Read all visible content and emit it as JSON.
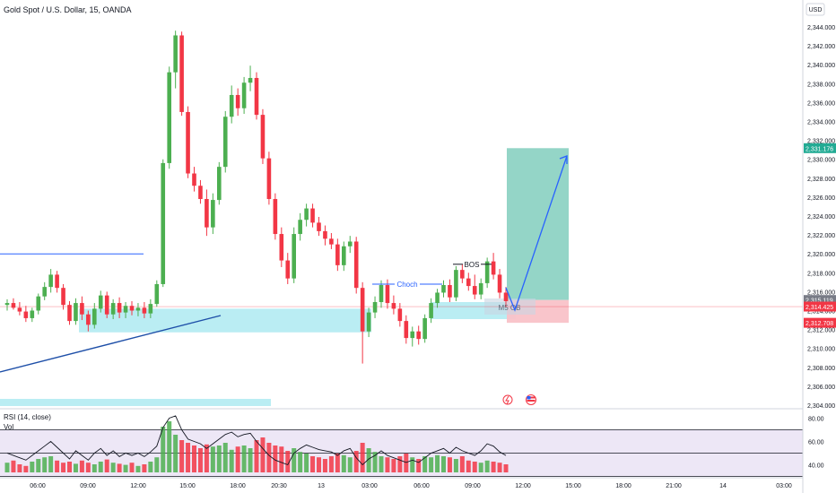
{
  "header": {
    "symbol_title": "Gold Spot / U.S. Dollar, 15, OANDA",
    "currency": "USD"
  },
  "price_axis": {
    "ticks": [
      "2,344.000",
      "2,342.000",
      "2,340.000",
      "2,338.000",
      "2,336.000",
      "2,334.000",
      "2,332.000",
      "2,330.000",
      "2,328.000",
      "2,326.000",
      "2,324.000",
      "2,322.000",
      "2,320.000",
      "2,318.000",
      "2,316.000",
      "2,314.000",
      "2,312.000",
      "2,310.000",
      "2,308.000",
      "2,306.000",
      "2,304.000"
    ],
    "tags": {
      "target": "2,331.176",
      "current": "2,315.119",
      "last": "2,314.425",
      "stop": "2,312.708"
    }
  },
  "time_axis": {
    "labels": [
      "06:00",
      "09:00",
      "12:00",
      "15:00",
      "18:00",
      "20:30",
      "13",
      "03:00",
      "06:00",
      "09:00",
      "12:00",
      "15:00",
      "18:00",
      "21:00",
      "14",
      "03:00"
    ]
  },
  "annotations": {
    "choch": "Choch",
    "bos": "BOS",
    "ob": "M5 OB"
  },
  "rsi": {
    "title": "RSI (14, close)",
    "vol_label": "Vol",
    "ticks": [
      "80.00",
      "60.00",
      "40.00"
    ],
    "levels": [
      70,
      50,
      30
    ]
  },
  "colors": {
    "up": "#4caf50",
    "down": "#f23645",
    "zone": "#b2ebf2",
    "target_zone": "#8ed3c4",
    "stop_zone": "#f9c2c8",
    "arrow": "#2962ff",
    "rsi_bg": "#ede7f6"
  },
  "chart_data": {
    "type": "candlestick",
    "title": "Gold Spot / U.S. Dollar, 15, OANDA",
    "ylim": [
      2303.5,
      2345.5
    ],
    "candles": [
      {
        "o": 2314.6,
        "h": 2315.2,
        "l": 2314.0,
        "c": 2314.8
      },
      {
        "o": 2314.8,
        "h": 2315.3,
        "l": 2314.1,
        "c": 2314.3
      },
      {
        "o": 2314.3,
        "h": 2314.9,
        "l": 2313.5,
        "c": 2313.9
      },
      {
        "o": 2313.9,
        "h": 2314.5,
        "l": 2312.8,
        "c": 2313.2
      },
      {
        "o": 2313.2,
        "h": 2314.3,
        "l": 2312.8,
        "c": 2314.0
      },
      {
        "o": 2314.0,
        "h": 2315.8,
        "l": 2313.6,
        "c": 2315.5
      },
      {
        "o": 2315.5,
        "h": 2317.0,
        "l": 2315.1,
        "c": 2316.5
      },
      {
        "o": 2316.5,
        "h": 2318.4,
        "l": 2315.9,
        "c": 2317.8
      },
      {
        "o": 2317.8,
        "h": 2318.2,
        "l": 2315.9,
        "c": 2316.4
      },
      {
        "o": 2316.4,
        "h": 2316.8,
        "l": 2314.1,
        "c": 2314.6
      },
      {
        "o": 2314.6,
        "h": 2315.0,
        "l": 2312.5,
        "c": 2312.9
      },
      {
        "o": 2312.9,
        "h": 2315.3,
        "l": 2312.5,
        "c": 2314.8
      },
      {
        "o": 2314.8,
        "h": 2315.5,
        "l": 2313.0,
        "c": 2313.6
      },
      {
        "o": 2313.6,
        "h": 2314.0,
        "l": 2311.8,
        "c": 2312.5
      },
      {
        "o": 2312.5,
        "h": 2314.8,
        "l": 2312.1,
        "c": 2314.2
      },
      {
        "o": 2314.2,
        "h": 2316.1,
        "l": 2313.8,
        "c": 2315.6
      },
      {
        "o": 2315.6,
        "h": 2316.0,
        "l": 2313.2,
        "c": 2313.6
      },
      {
        "o": 2313.6,
        "h": 2315.2,
        "l": 2313.1,
        "c": 2314.8
      },
      {
        "o": 2314.8,
        "h": 2315.4,
        "l": 2313.2,
        "c": 2313.8
      },
      {
        "o": 2313.8,
        "h": 2314.9,
        "l": 2313.2,
        "c": 2314.5
      },
      {
        "o": 2314.5,
        "h": 2315.0,
        "l": 2313.5,
        "c": 2314.0
      },
      {
        "o": 2314.0,
        "h": 2314.8,
        "l": 2313.4,
        "c": 2314.3
      },
      {
        "o": 2314.3,
        "h": 2314.9,
        "l": 2313.2,
        "c": 2313.7
      },
      {
        "o": 2313.7,
        "h": 2315.2,
        "l": 2313.2,
        "c": 2314.7
      },
      {
        "o": 2314.7,
        "h": 2317.2,
        "l": 2314.4,
        "c": 2316.8
      },
      {
        "o": 2316.8,
        "h": 2330.0,
        "l": 2316.5,
        "c": 2329.6
      },
      {
        "o": 2329.6,
        "h": 2339.8,
        "l": 2329.0,
        "c": 2339.2
      },
      {
        "o": 2339.2,
        "h": 2343.6,
        "l": 2337.5,
        "c": 2343.1
      },
      {
        "o": 2343.1,
        "h": 2343.5,
        "l": 2334.6,
        "c": 2335.0
      },
      {
        "o": 2335.0,
        "h": 2335.6,
        "l": 2328.0,
        "c": 2328.5
      },
      {
        "o": 2328.5,
        "h": 2329.2,
        "l": 2326.6,
        "c": 2327.2
      },
      {
        "o": 2327.2,
        "h": 2327.8,
        "l": 2325.3,
        "c": 2325.8
      },
      {
        "o": 2325.8,
        "h": 2326.8,
        "l": 2321.9,
        "c": 2322.8
      },
      {
        "o": 2322.8,
        "h": 2326.4,
        "l": 2322.1,
        "c": 2325.7
      },
      {
        "o": 2325.7,
        "h": 2329.7,
        "l": 2325.2,
        "c": 2329.2
      },
      {
        "o": 2329.2,
        "h": 2335.1,
        "l": 2328.6,
        "c": 2334.5
      },
      {
        "o": 2334.5,
        "h": 2337.8,
        "l": 2333.8,
        "c": 2336.8
      },
      {
        "o": 2336.8,
        "h": 2337.5,
        "l": 2334.6,
        "c": 2335.4
      },
      {
        "o": 2335.4,
        "h": 2338.7,
        "l": 2334.8,
        "c": 2338.1
      },
      {
        "o": 2338.1,
        "h": 2339.9,
        "l": 2337.2,
        "c": 2338.6
      },
      {
        "o": 2338.6,
        "h": 2339.2,
        "l": 2334.2,
        "c": 2334.7
      },
      {
        "o": 2334.7,
        "h": 2335.3,
        "l": 2329.5,
        "c": 2330.1
      },
      {
        "o": 2330.1,
        "h": 2330.8,
        "l": 2325.2,
        "c": 2325.8
      },
      {
        "o": 2325.8,
        "h": 2326.4,
        "l": 2321.5,
        "c": 2322.1
      },
      {
        "o": 2322.1,
        "h": 2322.8,
        "l": 2318.6,
        "c": 2319.3
      },
      {
        "o": 2319.3,
        "h": 2320.1,
        "l": 2316.8,
        "c": 2317.4
      },
      {
        "o": 2317.4,
        "h": 2322.8,
        "l": 2316.9,
        "c": 2322.1
      },
      {
        "o": 2322.1,
        "h": 2324.3,
        "l": 2321.4,
        "c": 2323.6
      },
      {
        "o": 2323.6,
        "h": 2325.3,
        "l": 2322.9,
        "c": 2324.8
      },
      {
        "o": 2324.8,
        "h": 2325.3,
        "l": 2322.8,
        "c": 2323.3
      },
      {
        "o": 2323.3,
        "h": 2323.9,
        "l": 2321.9,
        "c": 2322.4
      },
      {
        "o": 2322.4,
        "h": 2323.0,
        "l": 2320.9,
        "c": 2321.6
      },
      {
        "o": 2321.6,
        "h": 2322.2,
        "l": 2320.5,
        "c": 2321.0
      },
      {
        "o": 2321.0,
        "h": 2321.6,
        "l": 2318.2,
        "c": 2318.8
      },
      {
        "o": 2318.8,
        "h": 2321.3,
        "l": 2318.2,
        "c": 2320.8
      },
      {
        "o": 2320.8,
        "h": 2321.9,
        "l": 2320.1,
        "c": 2321.3
      },
      {
        "o": 2321.3,
        "h": 2321.8,
        "l": 2315.8,
        "c": 2316.4
      },
      {
        "o": 2316.4,
        "h": 2317.0,
        "l": 2308.4,
        "c": 2311.8
      },
      {
        "o": 2311.8,
        "h": 2314.3,
        "l": 2311.2,
        "c": 2313.8
      },
      {
        "o": 2313.8,
        "h": 2315.5,
        "l": 2313.2,
        "c": 2314.9
      },
      {
        "o": 2314.9,
        "h": 2317.2,
        "l": 2314.3,
        "c": 2316.7
      },
      {
        "o": 2316.7,
        "h": 2317.3,
        "l": 2314.2,
        "c": 2314.8
      },
      {
        "o": 2314.8,
        "h": 2315.6,
        "l": 2313.6,
        "c": 2314.2
      },
      {
        "o": 2314.2,
        "h": 2314.8,
        "l": 2312.3,
        "c": 2312.9
      },
      {
        "o": 2312.9,
        "h": 2313.5,
        "l": 2310.5,
        "c": 2311.1
      },
      {
        "o": 2311.1,
        "h": 2312.3,
        "l": 2310.2,
        "c": 2311.8
      },
      {
        "o": 2311.8,
        "h": 2312.4,
        "l": 2310.4,
        "c": 2311.0
      },
      {
        "o": 2311.0,
        "h": 2313.6,
        "l": 2310.6,
        "c": 2313.2
      },
      {
        "o": 2313.2,
        "h": 2315.3,
        "l": 2312.7,
        "c": 2314.8
      },
      {
        "o": 2314.8,
        "h": 2316.3,
        "l": 2314.3,
        "c": 2315.9
      },
      {
        "o": 2315.9,
        "h": 2317.2,
        "l": 2315.4,
        "c": 2316.7
      },
      {
        "o": 2316.7,
        "h": 2317.3,
        "l": 2314.9,
        "c": 2315.4
      },
      {
        "o": 2315.4,
        "h": 2318.7,
        "l": 2315.0,
        "c": 2318.3
      },
      {
        "o": 2318.3,
        "h": 2318.9,
        "l": 2316.9,
        "c": 2317.4
      },
      {
        "o": 2317.4,
        "h": 2318.0,
        "l": 2316.1,
        "c": 2316.6
      },
      {
        "o": 2316.6,
        "h": 2317.8,
        "l": 2315.2,
        "c": 2315.7
      },
      {
        "o": 2315.7,
        "h": 2317.4,
        "l": 2315.2,
        "c": 2316.9
      },
      {
        "o": 2316.9,
        "h": 2319.6,
        "l": 2316.4,
        "c": 2319.2
      },
      {
        "o": 2319.2,
        "h": 2320.1,
        "l": 2317.3,
        "c": 2317.8
      },
      {
        "o": 2317.8,
        "h": 2318.4,
        "l": 2315.3,
        "c": 2315.9
      },
      {
        "o": 2315.9,
        "h": 2316.5,
        "l": 2314.4,
        "c": 2315.0
      }
    ],
    "zones": [
      {
        "name": "demand-zone-left",
        "y": [
          2311.7,
          2314.2
        ]
      },
      {
        "name": "demand-zone-mid",
        "y": [
          2311.7,
          2314.2
        ]
      },
      {
        "name": "demand-zone-right",
        "y": [
          2313.1,
          2314.9
        ]
      },
      {
        "name": "take-profit-zone",
        "y": [
          2315.119,
          2331.176
        ]
      },
      {
        "name": "stop-loss-zone",
        "y": [
          2312.708,
          2315.119
        ]
      }
    ],
    "levels": {
      "horizontal_line": 2320.0,
      "choch": 2316.8,
      "bos": 2318.9,
      "current_price": 2314.425
    },
    "rsi_series": [
      50,
      48,
      46,
      44,
      48,
      52,
      56,
      60,
      55,
      50,
      45,
      52,
      48,
      44,
      50,
      54,
      48,
      52,
      47,
      50,
      48,
      50,
      47,
      51,
      56,
      72,
      80,
      82,
      70,
      62,
      60,
      58,
      54,
      58,
      62,
      66,
      68,
      64,
      66,
      67,
      60,
      54,
      48,
      44,
      42,
      40,
      50,
      54,
      57,
      55,
      53,
      52,
      51,
      48,
      52,
      54,
      46,
      40,
      45,
      48,
      52,
      48,
      46,
      44,
      42,
      44,
      42,
      46,
      50,
      52,
      54,
      50,
      55,
      52,
      50,
      48,
      52,
      58,
      56,
      51,
      48
    ],
    "volume": [
      18,
      22,
      15,
      12,
      20,
      25,
      28,
      30,
      22,
      18,
      20,
      16,
      22,
      18,
      15,
      20,
      24,
      18,
      16,
      14,
      18,
      12,
      15,
      20,
      28,
      85,
      95,
      70,
      60,
      55,
      50,
      45,
      52,
      48,
      50,
      55,
      42,
      48,
      50,
      45,
      60,
      65,
      55,
      50,
      48,
      40,
      45,
      38,
      35,
      30,
      28,
      25,
      30,
      35,
      32,
      28,
      40,
      55,
      45,
      38,
      30,
      28,
      25,
      30,
      35,
      28,
      25,
      30,
      28,
      32,
      30,
      28,
      25,
      30,
      22,
      20,
      18,
      22,
      20,
      18,
      15
    ]
  }
}
